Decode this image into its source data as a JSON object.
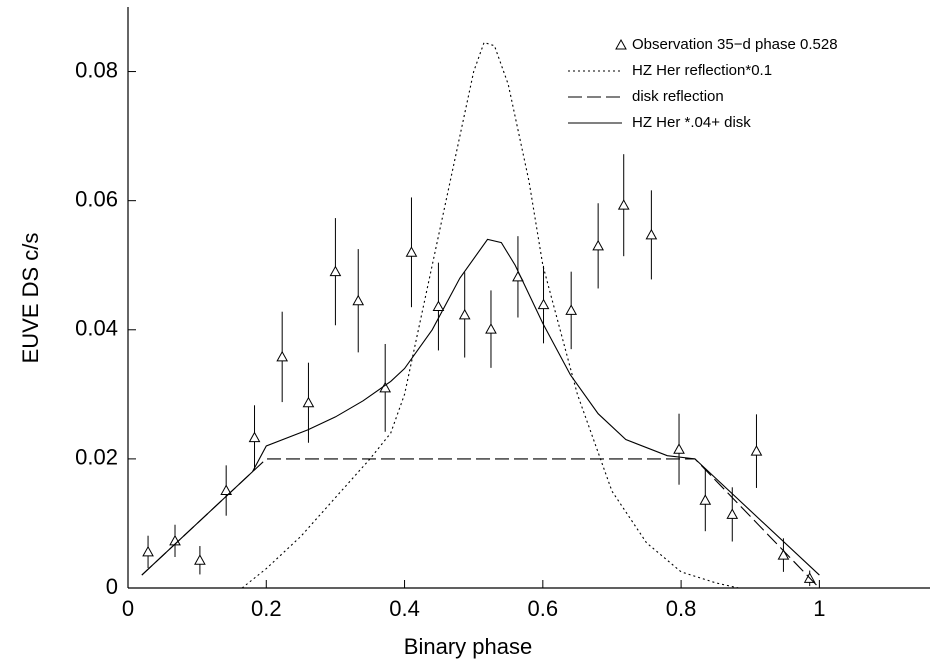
{
  "chart_data": {
    "type": "scatter",
    "x_label": "Binary phase",
    "y_label": "EUVE DS c/s",
    "xlim": [
      0,
      1.16
    ],
    "ylim": [
      0,
      0.09
    ],
    "xticks": [
      0,
      0.2,
      0.4,
      0.6,
      0.8,
      1
    ],
    "yticks": [
      0,
      0.02,
      0.04,
      0.06,
      0.08
    ],
    "legend": "top-right",
    "series": [
      {
        "name": "Observation 35−d phase 0.528",
        "style": "triangle",
        "color": "#000000",
        "x": [
          0.029,
          0.068,
          0.104,
          0.142,
          0.183,
          0.223,
          0.261,
          0.3,
          0.333,
          0.372,
          0.41,
          0.449,
          0.487,
          0.525,
          0.564,
          0.601,
          0.641,
          0.68,
          0.717,
          0.757,
          0.797,
          0.835,
          0.874,
          0.909,
          0.948,
          0.986
        ],
        "values": [
          0.0056,
          0.0073,
          0.0043,
          0.0151,
          0.0233,
          0.0358,
          0.0287,
          0.049,
          0.0445,
          0.031,
          0.052,
          0.0436,
          0.0423,
          0.0401,
          0.0482,
          0.0439,
          0.043,
          0.053,
          0.0593,
          0.0547,
          0.0215,
          0.0136,
          0.0114,
          0.0212,
          0.0051,
          0.0015
        ],
        "errors": [
          0.0025,
          0.0025,
          0.0022,
          0.0039,
          0.005,
          0.007,
          0.0062,
          0.0083,
          0.008,
          0.0068,
          0.0085,
          0.0068,
          0.0066,
          0.006,
          0.0063,
          0.006,
          0.006,
          0.0066,
          0.0079,
          0.0069,
          0.0055,
          0.0048,
          0.0042,
          0.0057,
          0.0026,
          0.0012
        ]
      },
      {
        "name": "HZ Her reflection*0.1",
        "style": "dotted",
        "color": "#000000",
        "x": [
          0.165,
          0.2,
          0.25,
          0.3,
          0.35,
          0.38,
          0.4,
          0.42,
          0.45,
          0.48,
          0.5,
          0.515,
          0.53,
          0.55,
          0.58,
          0.6,
          0.62,
          0.65,
          0.7,
          0.75,
          0.8,
          0.85,
          0.883
        ],
        "values": [
          0,
          0.003,
          0.008,
          0.014,
          0.02,
          0.024,
          0.03,
          0.04,
          0.055,
          0.07,
          0.08,
          0.0845,
          0.084,
          0.078,
          0.063,
          0.05,
          0.042,
          0.03,
          0.015,
          0.007,
          0.0025,
          0.0008,
          0
        ]
      },
      {
        "name": "disk reflection",
        "style": "dashed",
        "color": "#000000",
        "x": [
          0.02,
          0.2,
          0.82,
          1.0
        ],
        "values": [
          0.002,
          0.02,
          0.02,
          0
        ]
      },
      {
        "name": "HZ Her *.04+ disk",
        "style": "solid",
        "color": "#000000",
        "x": [
          0.02,
          0.18,
          0.2,
          0.26,
          0.3,
          0.34,
          0.38,
          0.4,
          0.44,
          0.48,
          0.52,
          0.54,
          0.56,
          0.6,
          0.64,
          0.68,
          0.72,
          0.78,
          0.82,
          1.0
        ],
        "values": [
          0.002,
          0.018,
          0.022,
          0.0245,
          0.0265,
          0.029,
          0.032,
          0.034,
          0.04,
          0.048,
          0.054,
          0.0535,
          0.05,
          0.041,
          0.033,
          0.027,
          0.023,
          0.0205,
          0.02,
          0.002
        ]
      }
    ]
  }
}
